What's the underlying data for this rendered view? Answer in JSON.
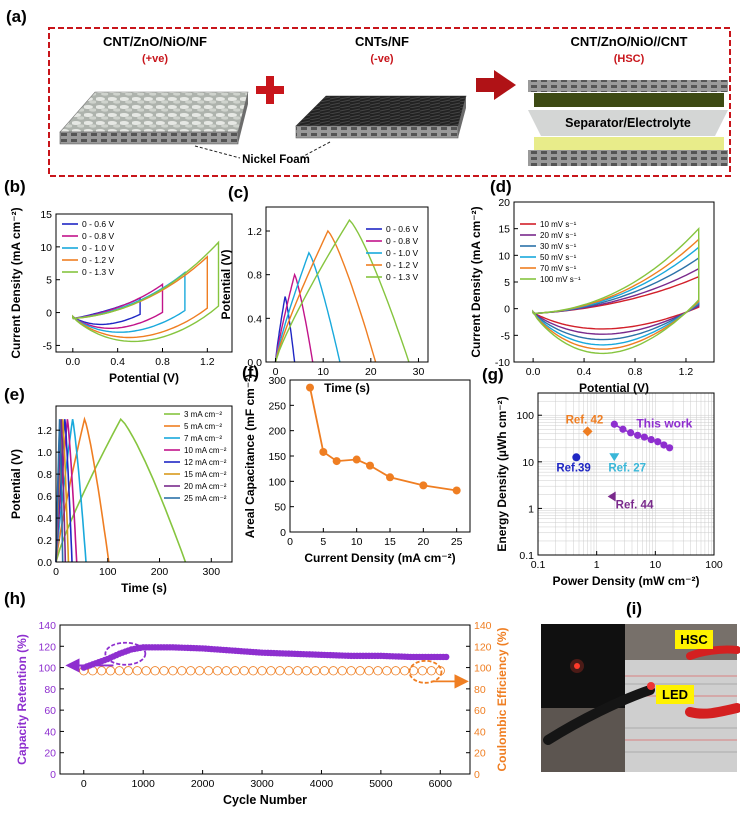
{
  "panels": {
    "a": {
      "label": "(a)",
      "pos": {
        "title": "CNT/ZnO/NiO/NF",
        "sub": "(+ve)"
      },
      "neg": {
        "title": "CNTs/NF",
        "sub": "(-ve)"
      },
      "hsc": {
        "title": "CNT/ZnO/NiO//CNT",
        "sub": "(HSC)"
      },
      "separator_label": "Separator/Electrolyte",
      "foam_label": "Nickel Foam",
      "colors": {
        "accent": "#c8151b",
        "foam": "#8a8a8a",
        "cnt_white": "#d8dbd7",
        "cnt_black": "#1e1e1e",
        "electrolyte": "#e8ec8a"
      }
    },
    "i": {
      "label": "(i)",
      "hsc_label": "HSC",
      "led_label": "LED"
    }
  },
  "chart_data": [
    {
      "id": "b",
      "label": "(b)",
      "type": "line",
      "xlabel": "Potential (V)",
      "ylabel": "Current Density (mA cm⁻²)",
      "xlim": [
        -0.15,
        1.42
      ],
      "ylim": [
        -6,
        15
      ],
      "xticks": [
        0.0,
        0.4,
        0.8,
        1.2
      ],
      "xtick_labels": [
        "0.0",
        "0.4",
        "0.8",
        "1.2"
      ],
      "yticks": [
        -5,
        0,
        5,
        10,
        15
      ],
      "ytick_labels": [
        "-5",
        "0",
        "5",
        "10",
        "15"
      ],
      "legend": "top-left",
      "series": [
        {
          "name": "0 - 0.6 V",
          "color": "#1f27c4",
          "vmax": 0.6,
          "imax": 2.2,
          "imin": -1.2
        },
        {
          "name": "0 - 0.8 V",
          "color": "#c2148a",
          "vmax": 0.8,
          "imax": 4.3,
          "imin": -1.8
        },
        {
          "name": "0 - 1.0 V",
          "color": "#19a9dc",
          "vmax": 1.0,
          "imax": 6.1,
          "imin": -2.4
        },
        {
          "name": "0 - 1.2 V",
          "color": "#ef7e22",
          "vmax": 1.2,
          "imax": 8.5,
          "imin": -3.2
        },
        {
          "name": "0 - 1.3 V",
          "color": "#86c53f",
          "vmax": 1.3,
          "imax": 10.7,
          "imin": -3.8
        }
      ]
    },
    {
      "id": "c",
      "label": "(c)",
      "type": "line",
      "xlabel": "Time (s)",
      "ylabel": "Potential (V)",
      "xlim": [
        -2,
        32
      ],
      "ylim": [
        0,
        1.42
      ],
      "xticks": [
        0,
        10,
        20,
        30
      ],
      "xtick_labels": [
        "0",
        "10",
        "20",
        "30"
      ],
      "yticks": [
        0.0,
        0.4,
        0.8,
        1.2
      ],
      "ytick_labels": [
        "0.0",
        "0.4",
        "0.8",
        "1.2"
      ],
      "legend": "top-right",
      "series": [
        {
          "name": "0 - 0.6 V",
          "color": "#1f27c4",
          "vmax": 0.6,
          "tpeak": 2.0,
          "tend": 4.0
        },
        {
          "name": "0 - 0.8 V",
          "color": "#c2148a",
          "vmax": 0.8,
          "tpeak": 4.0,
          "tend": 7.8
        },
        {
          "name": "0 - 1.0 V",
          "color": "#19a9dc",
          "vmax": 1.0,
          "tpeak": 7.0,
          "tend": 13.5
        },
        {
          "name": "0 - 1.2 V",
          "color": "#ef7e22",
          "vmax": 1.2,
          "tpeak": 11.0,
          "tend": 21.0
        },
        {
          "name": "0 - 1.3 V",
          "color": "#86c53f",
          "vmax": 1.3,
          "tpeak": 15.5,
          "tend": 28.0
        }
      ]
    },
    {
      "id": "d",
      "label": "(d)",
      "type": "line",
      "xlabel": "Potential (V)",
      "ylabel": "Current Density (mA cm⁻²)",
      "xlim": [
        -0.15,
        1.42
      ],
      "ylim": [
        -10,
        20
      ],
      "xticks": [
        0.0,
        0.4,
        0.8,
        1.2
      ],
      "xtick_labels": [
        "0.0",
        "0.4",
        "0.8",
        "1.2"
      ],
      "yticks": [
        -10,
        -5,
        0,
        5,
        10,
        15,
        20
      ],
      "ytick_labels": [
        "-10",
        "-5",
        "0",
        "5",
        "10",
        "15",
        "20"
      ],
      "legend": "top-left",
      "series": [
        {
          "name": "10 mV s⁻¹",
          "color": "#d2202a",
          "imax": 6.0,
          "imin": -3.2
        },
        {
          "name": "20 mV s⁻¹",
          "color": "#7a2a8c",
          "imax": 7.5,
          "imin": -4.2
        },
        {
          "name": "30 mV s⁻¹",
          "color": "#2c72a8",
          "imax": 9.5,
          "imin": -5.2
        },
        {
          "name": "50 mV s⁻¹",
          "color": "#19a9dc",
          "imax": 11.5,
          "imin": -6.2
        },
        {
          "name": "70 mV s⁻¹",
          "color": "#ef7e22",
          "imax": 13.0,
          "imin": -7.0
        },
        {
          "name": "100 mV s⁻¹",
          "color": "#86c53f",
          "imax": 15.0,
          "imin": -7.8
        }
      ]
    },
    {
      "id": "e",
      "label": "(e)",
      "type": "line",
      "xlabel": "Time (s)",
      "ylabel": "Potential (V)",
      "xlim": [
        0,
        340
      ],
      "ylim": [
        0,
        1.42
      ],
      "xticks": [
        0,
        100,
        200,
        300
      ],
      "xtick_labels": [
        "0",
        "100",
        "200",
        "300"
      ],
      "yticks": [
        0.0,
        0.2,
        0.4,
        0.6,
        0.8,
        1.0,
        1.2
      ],
      "ytick_labels": [
        "0.0",
        "0.2",
        "0.4",
        "0.6",
        "0.8",
        "1.0",
        "1.2"
      ],
      "legend": "top-right",
      "series": [
        {
          "name": "3 mA cm⁻²",
          "color": "#86c53f",
          "tpeak": 125,
          "tend": 250
        },
        {
          "name": "5 mA cm⁻²",
          "color": "#ef7e22",
          "tpeak": 55,
          "tend": 102
        },
        {
          "name": "7 mA cm⁻²",
          "color": "#19a9dc",
          "tpeak": 32,
          "tend": 58
        },
        {
          "name": "10 mA cm⁻²",
          "color": "#c2148a",
          "tpeak": 22,
          "tend": 40
        },
        {
          "name": "12 mA cm⁻²",
          "color": "#1f27c4",
          "tpeak": 17,
          "tend": 31
        },
        {
          "name": "15 mA cm⁻²",
          "color": "#d89a1c",
          "tpeak": 13,
          "tend": 24
        },
        {
          "name": "20 mA cm⁻²",
          "color": "#7a2a8c",
          "tpeak": 10,
          "tend": 18
        },
        {
          "name": "25 mA cm⁻²",
          "color": "#2c72a8",
          "tpeak": 7,
          "tend": 13
        }
      ]
    },
    {
      "id": "f",
      "label": "(f)",
      "type": "line",
      "xlabel": "Current Density (mA cm⁻²)",
      "ylabel": "Areal Capacitance (mF cm⁻²)",
      "xlim": [
        0,
        27
      ],
      "ylim": [
        0,
        300
      ],
      "xticks": [
        0,
        5,
        10,
        15,
        20,
        25
      ],
      "xtick_labels": [
        "0",
        "5",
        "10",
        "15",
        "20",
        "25"
      ],
      "yticks": [
        0,
        50,
        100,
        150,
        200,
        250,
        300
      ],
      "ytick_labels": [
        "0",
        "50",
        "100",
        "150",
        "200",
        "250",
        "300"
      ],
      "x": [
        3,
        5,
        7,
        10,
        12,
        15,
        20,
        25
      ],
      "values": [
        285,
        158,
        140,
        143,
        131,
        108,
        92,
        82
      ],
      "color": "#ef7e22"
    },
    {
      "id": "g",
      "label": "(g)",
      "type": "scatter",
      "xlabel": "Power Density (mW cm⁻²)",
      "ylabel": "Energy Density (µWh cm⁻²)",
      "xscale": "log",
      "yscale": "log",
      "xlim": [
        0.1,
        100
      ],
      "ylim": [
        0.1,
        300
      ],
      "xticks": [
        0.1,
        1,
        10,
        100
      ],
      "xtick_labels": [
        "0.1",
        "1",
        "10",
        "100"
      ],
      "yticks": [
        0.1,
        1,
        10,
        100
      ],
      "ytick_labels": [
        "0.1",
        "1",
        "10",
        "100"
      ],
      "points": [
        {
          "name": "Ref. 42",
          "x": 0.7,
          "y": 45,
          "color": "#ef7e22",
          "marker": "diamond"
        },
        {
          "name": "Ref.39",
          "x": 0.45,
          "y": 12.5,
          "color": "#1f27c4",
          "marker": "circle"
        },
        {
          "name": "Ref. 27",
          "x": 2.0,
          "y": 12.5,
          "color": "#3ab7d8",
          "marker": "triangle-down"
        },
        {
          "name": "Ref. 44",
          "x": 1.8,
          "y": 1.8,
          "color": "#7a2a8c",
          "marker": "triangle-left"
        }
      ],
      "series": [
        {
          "name": "This work",
          "color": "#8e2fcf",
          "x": [
            2.0,
            2.8,
            3.8,
            5.0,
            6.5,
            8.5,
            11,
            14,
            17.5
          ],
          "y": [
            64,
            50,
            42,
            37,
            34,
            30,
            27,
            23,
            20
          ]
        }
      ]
    },
    {
      "id": "h",
      "label": "(h)",
      "type": "line",
      "xlabel": "Cycle Number",
      "ylabel": "Capacity Retention (%)",
      "y2label": "Coulombic Efficiency (%)",
      "xlim": [
        -400,
        6500
      ],
      "ylim": [
        0,
        140
      ],
      "y2lim": [
        0,
        140
      ],
      "xticks": [
        0,
        1000,
        2000,
        3000,
        4000,
        5000,
        6000
      ],
      "xtick_labels": [
        "0",
        "1000",
        "2000",
        "3000",
        "4000",
        "5000",
        "6000"
      ],
      "yticks": [
        0,
        20,
        40,
        60,
        80,
        100,
        120,
        140
      ],
      "ytick_labels": [
        "0",
        "20",
        "40",
        "60",
        "80",
        "100",
        "120",
        "140"
      ],
      "series": [
        {
          "name": "Capacity Retention",
          "color": "#8e2fcf",
          "x": [
            0,
            200,
            400,
            600,
            800,
            1000,
            1500,
            2000,
            2500,
            3000,
            3500,
            4000,
            4500,
            5000,
            5500,
            6100
          ],
          "y": [
            100,
            104,
            108,
            113,
            117,
            119,
            119,
            118,
            116,
            114,
            113,
            112,
            111,
            111,
            110,
            110
          ]
        },
        {
          "name": "Coulombic Efficiency",
          "color": "#ef7e22",
          "axis": "right",
          "x": [
            0,
            6100
          ],
          "y": [
            97,
            97
          ]
        }
      ]
    }
  ]
}
